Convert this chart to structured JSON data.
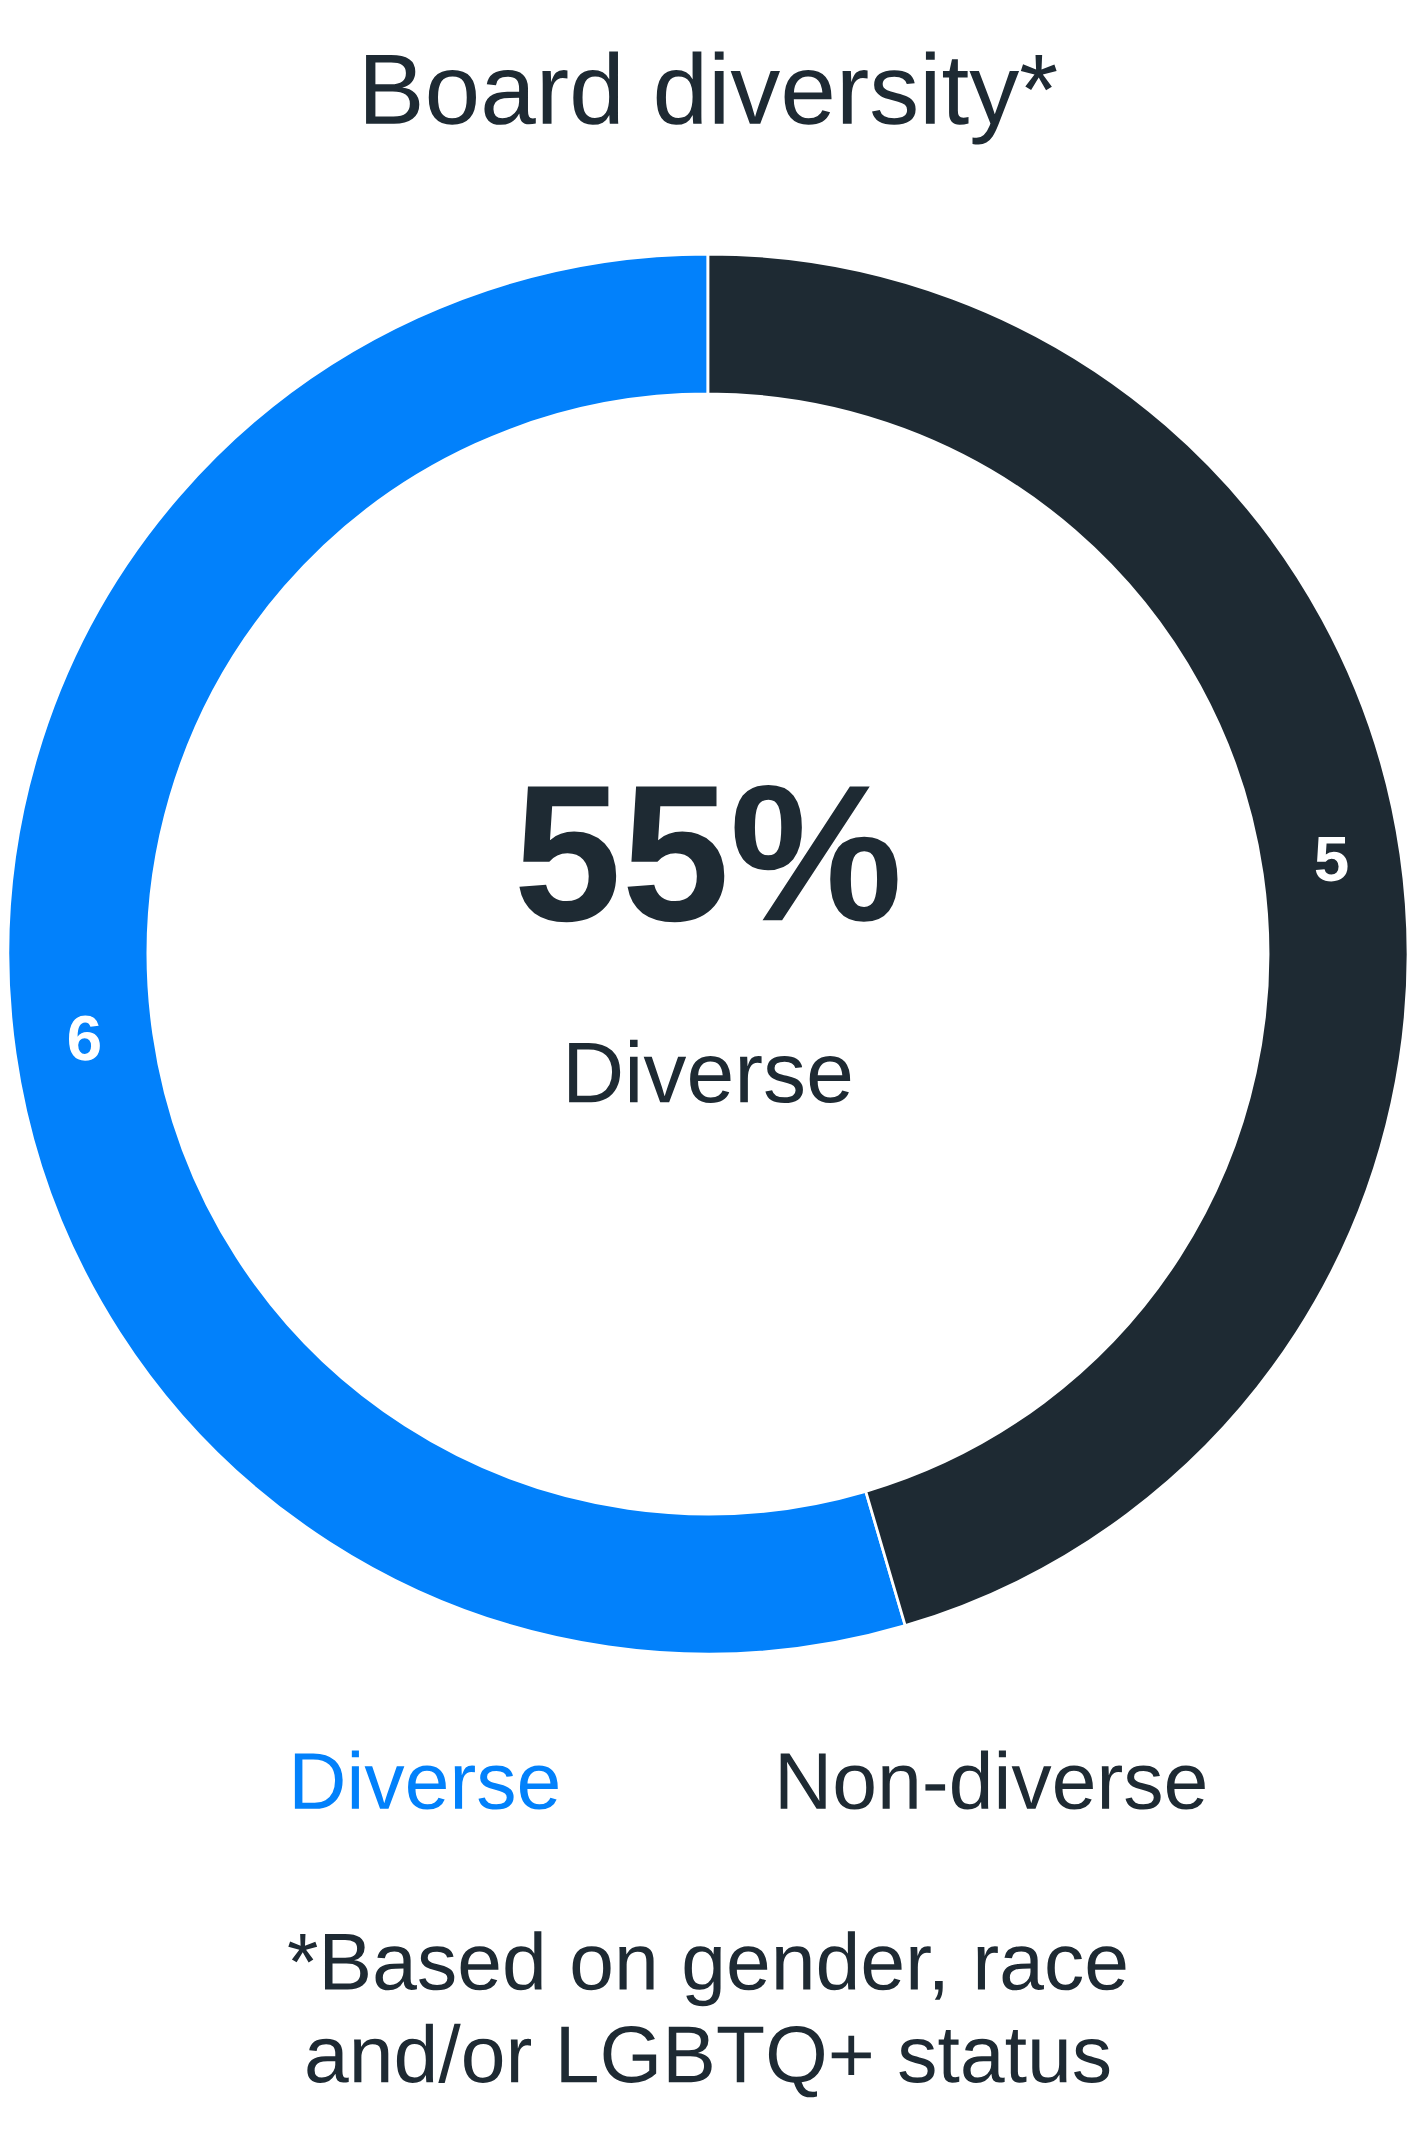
{
  "chart_data": {
    "type": "donut",
    "title": "Board diversity*",
    "categories": [
      "Diverse",
      "Non-diverse"
    ],
    "values": [
      6,
      5
    ],
    "colors": [
      "#0281fb",
      "#1e2a33"
    ],
    "data_labels": true,
    "annotations": [
      "55%",
      "Diverse",
      "*Based on gender, race\nand/or LGBTQ+ status"
    ]
  }
}
